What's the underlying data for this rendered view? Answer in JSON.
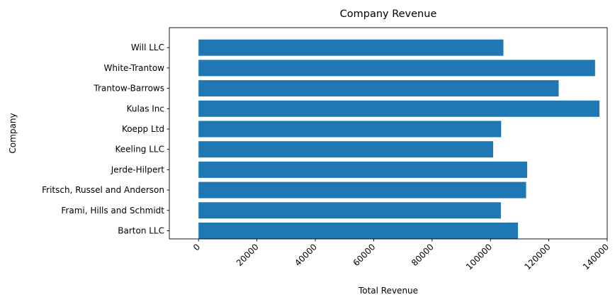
{
  "chart_data": {
    "type": "bar",
    "orientation": "horizontal",
    "title": "Company Revenue",
    "xlabel": "Total Revenue",
    "ylabel": "Company",
    "categories": [
      "Barton LLC",
      "Frami, Hills and Schmidt",
      "Fritsch, Russel and Anderson",
      "Jerde-Hilpert",
      "Keeling LLC",
      "Koepp Ltd",
      "Kulas Inc",
      "Trantow-Barrows",
      "White-Trantow",
      "Will LLC"
    ],
    "values": [
      109438,
      103569,
      112214,
      112591,
      100934,
      103660,
      137351,
      123381,
      135841,
      104437
    ],
    "xlim": [
      -10000,
      140000
    ],
    "xticks": [
      0,
      20000,
      40000,
      60000,
      80000,
      100000,
      120000,
      140000
    ],
    "xtick_labels": [
      "0",
      "20000",
      "40000",
      "60000",
      "80000",
      "100000",
      "120000",
      "140000"
    ],
    "xtick_rotation": -45,
    "bar_color": "#1f77b4",
    "grid": false,
    "legend": "none"
  }
}
